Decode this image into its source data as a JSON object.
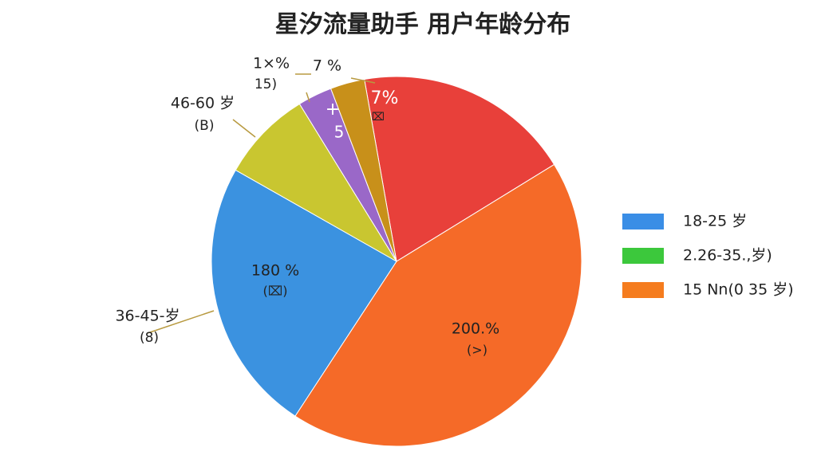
{
  "chart_data": {
    "type": "pie",
    "title": "星汐流量助手 用户年龄分布",
    "categories": [
      null,
      null,
      "36-45-岁",
      "46-60 岁",
      "1×%",
      "7 %"
    ],
    "values": [
      19,
      43,
      24,
      8,
      3,
      3
    ],
    "colors": [
      "#e8403a",
      "#f56a28",
      "#3b92e0",
      "#c9c630",
      "#9a68c8",
      "#c8901a"
    ],
    "annotations": [
      "7%",
      "⌧",
      "200.%",
      "(>)",
      "180 %",
      "(⌧)",
      "+",
      "5",
      "15)",
      "(B)",
      "(8)"
    ],
    "legend": [
      {
        "label": "18-25 岁",
        "color": "#3a8ee6"
      },
      {
        "label": "2.26-35.,岁)",
        "color": "#3cc83c"
      },
      {
        "label": "15 Nn(0 35 岁)",
        "color": "#f57c1e"
      }
    ]
  }
}
